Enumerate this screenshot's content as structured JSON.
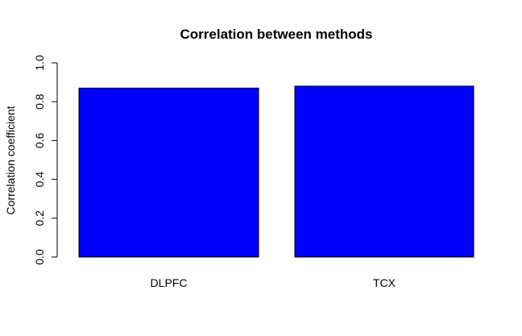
{
  "chart_data": {
    "type": "bar",
    "title": "Correlation between methods",
    "xlabel": "",
    "ylabel": "Correlation coefficient",
    "categories": [
      "DLPFC",
      "TCX"
    ],
    "values": [
      0.87,
      0.88
    ],
    "ylim": [
      0,
      1
    ],
    "yticks": [
      "0.0",
      "0.2",
      "0.4",
      "0.6",
      "0.8",
      "1.0"
    ],
    "grid": false,
    "legend": "none",
    "bar_color": "#0000ff",
    "border_color": "#000000"
  }
}
